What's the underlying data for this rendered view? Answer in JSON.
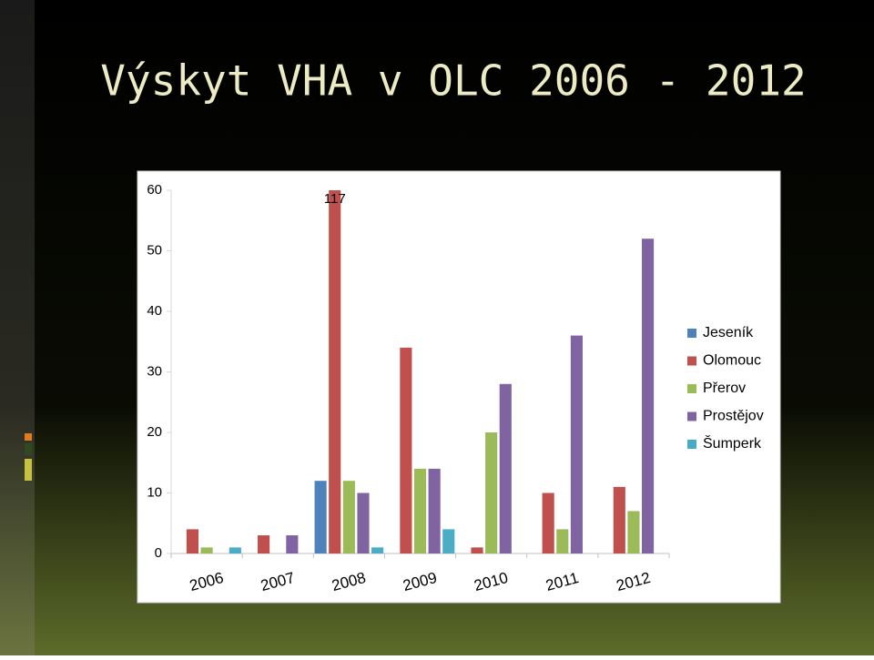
{
  "chart_data": {
    "type": "bar",
    "title": "Výskyt VHA v OLC 2006 - 2012",
    "categories": [
      "2006",
      "2007",
      "2008",
      "2009",
      "2010",
      "2011",
      "2012"
    ],
    "series": [
      {
        "name": "Jeseník",
        "color": "#4f81bd",
        "values": [
          0,
          0,
          12,
          0,
          0,
          0,
          0
        ]
      },
      {
        "name": "Olomouc",
        "color": "#c0504d",
        "values": [
          4,
          3,
          117,
          34,
          1,
          10,
          11
        ],
        "value_labels": [
          null,
          null,
          "117",
          null,
          null,
          null,
          null
        ]
      },
      {
        "name": "Přerov",
        "color": "#9bbb59",
        "values": [
          1,
          0,
          12,
          14,
          20,
          4,
          7
        ]
      },
      {
        "name": "Prostějov",
        "color": "#8064a2",
        "values": [
          0,
          3,
          10,
          14,
          28,
          36,
          52
        ]
      },
      {
        "name": "Šumperk",
        "color": "#4bacc6",
        "values": [
          1,
          0,
          1,
          4,
          0,
          0,
          0
        ]
      }
    ],
    "ylim": [
      0,
      60
    ],
    "yticks": [
      0,
      10,
      20,
      30,
      40,
      50,
      60
    ],
    "grid": false,
    "legend": "right"
  }
}
